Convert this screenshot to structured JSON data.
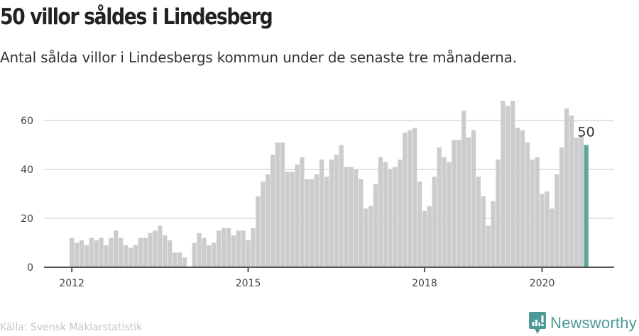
{
  "header": {
    "title": "50 villor såldes i Lindesberg",
    "subtitle": "Antal sålda villor i Lindesbergs kommun under de senaste tre månaderna."
  },
  "footer": {
    "source": "Källa: Svensk Mäklarstatistik",
    "brand": "Newsworthy",
    "brand_icon": "newsworthy-logo-icon"
  },
  "colors": {
    "bar": "#cccccc",
    "highlight": "#5aa89d",
    "grid": "#e3e3e3",
    "axis": "#555555",
    "brand": "#4b9a95"
  },
  "chart_data": {
    "type": "bar",
    "title": "50 villor såldes i Lindesberg",
    "subtitle": "Antal sålda villor i Lindesbergs kommun under de senaste tre månaderna.",
    "xlabel": "",
    "ylabel": "",
    "start": "2012-01",
    "frequency": "monthly",
    "end": "2020-10",
    "ylim": [
      0,
      70
    ],
    "yticks": [
      0,
      20,
      40,
      60
    ],
    "xticks": [
      {
        "label": "2012",
        "index": 0
      },
      {
        "label": "2015",
        "index": 36
      },
      {
        "label": "2018",
        "index": 72
      },
      {
        "label": "2020",
        "index": 96
      }
    ],
    "grid": true,
    "legend": "none",
    "highlight_index": 105,
    "annotation": {
      "index": 105,
      "text": "50"
    },
    "values": [
      12,
      10,
      11,
      9,
      12,
      11,
      12,
      9,
      12,
      15,
      12,
      9,
      8,
      9,
      12,
      12,
      14,
      15,
      17,
      13,
      11,
      6,
      6,
      4,
      null,
      10,
      14,
      12,
      9,
      10,
      15,
      16,
      16,
      13,
      15,
      15,
      11,
      16,
      29,
      35,
      38,
      46,
      51,
      51,
      39,
      39,
      42,
      45,
      36,
      36,
      38,
      44,
      37,
      44,
      46,
      50,
      41,
      41,
      40,
      36,
      24,
      25,
      34,
      45,
      43,
      40,
      41,
      44,
      55,
      56,
      57,
      35,
      23,
      25,
      37,
      49,
      45,
      43,
      52,
      52,
      64,
      53,
      56,
      37,
      29,
      17,
      27,
      44,
      68,
      66,
      68,
      57,
      56,
      51,
      44,
      45,
      30,
      31,
      24,
      38,
      49,
      65,
      62,
      53,
      54,
      50
    ]
  }
}
